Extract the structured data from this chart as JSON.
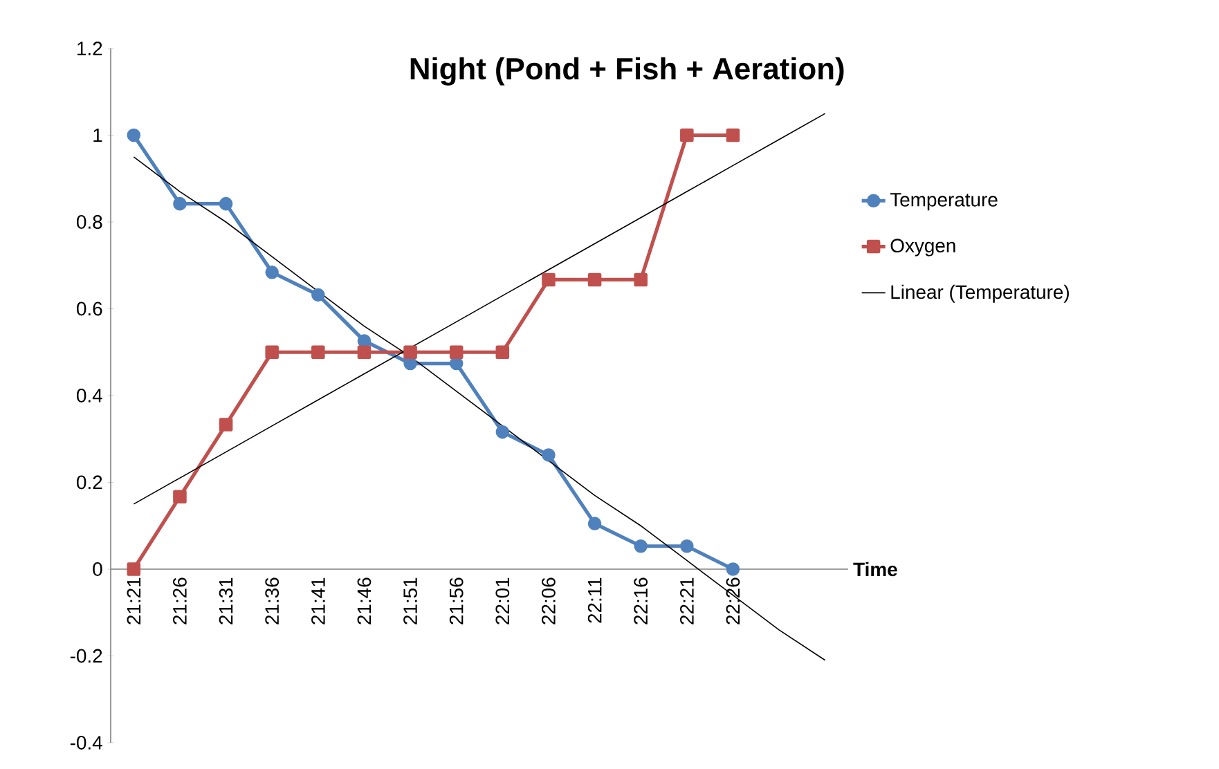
{
  "chart_data": {
    "type": "line",
    "title": "Night (Pond + Fish + Aeration)",
    "xlabel": "Time",
    "categories": [
      "21:21",
      "21:26",
      "21:31",
      "21:36",
      "21:41",
      "21:46",
      "21:51",
      "21:56",
      "22:01",
      "22:06",
      "22:11",
      "22:16",
      "22:21",
      "22:26",
      null,
      null
    ],
    "series": [
      {
        "name": "Temperature",
        "color": "#4f81bd",
        "marker": "circle",
        "values": [
          1,
          0.842,
          0.842,
          0.684,
          0.632,
          0.526,
          0.474,
          0.474,
          0.316,
          0.263,
          0.105,
          0.053,
          0.053,
          0,
          null,
          null
        ]
      },
      {
        "name": "Oxygen",
        "color": "#c0504d",
        "marker": "square",
        "values": [
          0,
          0.167,
          0.333,
          0.5,
          0.5,
          0.5,
          0.5,
          0.5,
          0.5,
          0.667,
          0.667,
          0.667,
          1,
          1,
          null,
          null
        ]
      },
      {
        "name": "Linear (Temperature)",
        "color": "#000000",
        "marker": "none",
        "values": [
          0.95,
          0.87,
          0.8,
          0.72,
          0.64,
          0.56,
          0.49,
          0.41,
          0.33,
          0.25,
          0.17,
          0.1,
          0.02,
          -0.06,
          -0.14,
          -0.21
        ]
      },
      {
        "color": "#000000",
        "marker": "none",
        "values": [
          0.15,
          0.21,
          0.27,
          0.33,
          0.39,
          0.45,
          0.51,
          0.57,
          0.63,
          0.69,
          0.75,
          0.81,
          0.87,
          0.93,
          0.99,
          1.05
        ]
      }
    ],
    "ylim": [
      -0.4,
      1.2
    ],
    "yticks": [
      -0.4,
      -0.2,
      0,
      0.2,
      0.4,
      0.6,
      0.8,
      1,
      1.2
    ],
    "grid": false,
    "legend": "right"
  }
}
